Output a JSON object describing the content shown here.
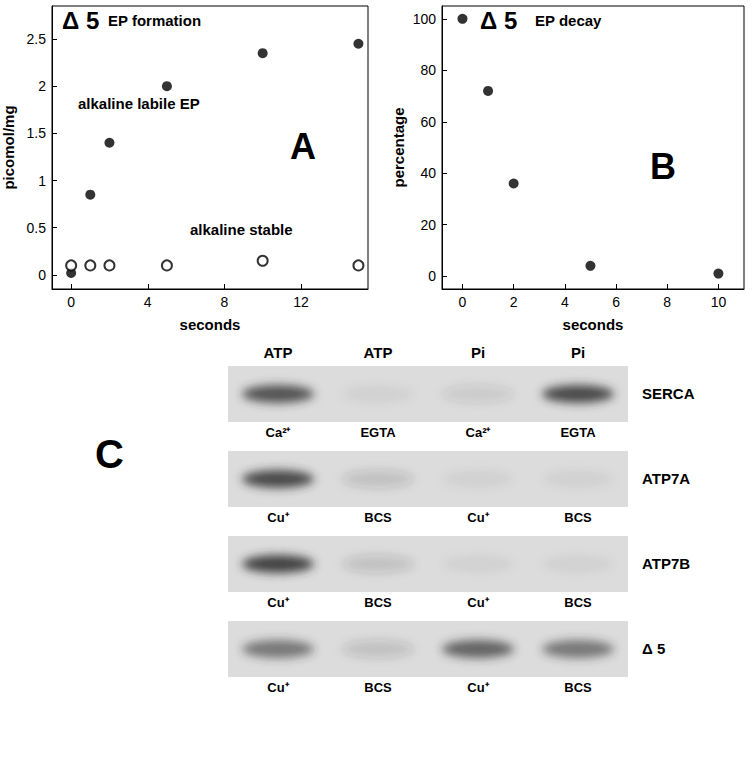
{
  "chart_data": [
    {
      "type": "scatter",
      "panel": "A",
      "title": "Δ 5",
      "subtitle": "EP formation",
      "x_label": "seconds",
      "y_label": "picomol/mg",
      "x": [
        0,
        1,
        2,
        5,
        10,
        15
      ],
      "series": [
        {
          "name": "alkaline labile EP",
          "marker": "filled circle",
          "color": "#000000",
          "values": [
            0.02,
            0.85,
            1.4,
            2.0,
            2.35,
            2.45
          ]
        },
        {
          "name": "alkaline stable",
          "marker": "open circle",
          "color": "#000000",
          "values": [
            0.1,
            0.1,
            0.1,
            0.1,
            0.15,
            0.1
          ]
        }
      ],
      "xlim": [
        -1,
        15.5
      ],
      "xticks": [
        0,
        4,
        8,
        12
      ],
      "ylim": [
        -0.15,
        2.85
      ],
      "yticks": [
        0,
        0.5,
        1,
        1.5,
        2,
        2.5
      ],
      "grid": false
    },
    {
      "type": "scatter",
      "panel": "B",
      "title": "Δ 5",
      "subtitle": "EP decay",
      "x_label": "seconds",
      "y_label": "percentage",
      "x": [
        0,
        1,
        2,
        5,
        10
      ],
      "series": [
        {
          "name": "EP decay",
          "marker": "filled circle",
          "color": "#000000",
          "values": [
            100,
            72,
            36,
            4,
            1
          ]
        }
      ],
      "xlim": [
        -0.8,
        11
      ],
      "xticks": [
        0,
        2,
        4,
        6,
        8,
        10
      ],
      "ylim": [
        -5,
        105
      ],
      "yticks": [
        0,
        20,
        40,
        60,
        80,
        100
      ],
      "grid": false
    }
  ],
  "panel_c": {
    "panel": "C",
    "columns": [
      "ATP",
      "ATP",
      "Pi",
      "Pi"
    ],
    "rows": [
      {
        "name": "SERCA",
        "conditions": [
          "Ca²⁺",
          "EGTA",
          "Ca²⁺",
          "EGTA"
        ],
        "band_intensity": [
          0.8,
          0.05,
          0.1,
          0.85
        ]
      },
      {
        "name": "ATP7A",
        "conditions": [
          "Cu⁺",
          "BCS",
          "Cu⁺",
          "BCS"
        ],
        "band_intensity": [
          0.85,
          0.15,
          0.05,
          0.05
        ]
      },
      {
        "name": "ATP7B",
        "conditions": [
          "Cu⁺",
          "BCS",
          "Cu⁺",
          "BCS"
        ],
        "band_intensity": [
          0.9,
          0.15,
          0.05,
          0.05
        ]
      },
      {
        "name": "Δ 5",
        "conditions": [
          "Cu⁺",
          "BCS",
          "Cu⁺",
          "BCS"
        ],
        "band_intensity": [
          0.6,
          0.15,
          0.7,
          0.6
        ]
      }
    ]
  }
}
